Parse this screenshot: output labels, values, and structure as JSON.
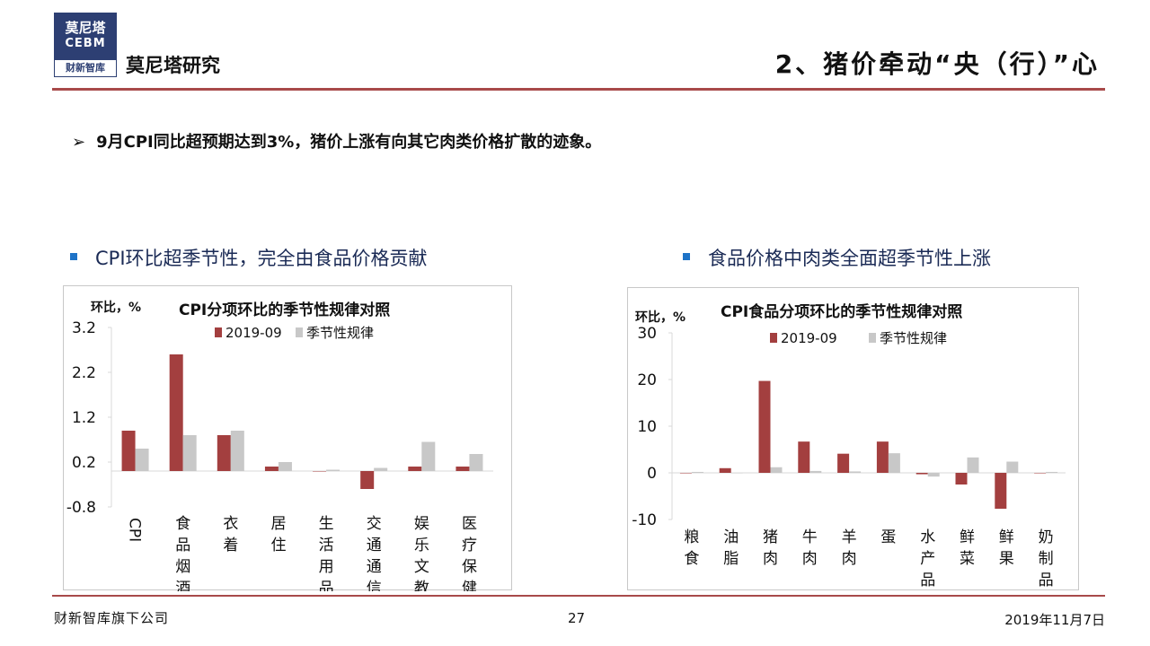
{
  "header": {
    "logo_cn": "莫尼塔",
    "logo_en": "CEBM",
    "logo_sub": "财新智库",
    "brand": "莫尼塔研究",
    "page_title": "2、猪价牵动“央（行）”心"
  },
  "bullet": {
    "arrow": "➢",
    "text": "9月CPI同比超预期达到3%，猪价上涨有向其它肉类价格扩散的迹象。"
  },
  "sections": [
    {
      "title": "CPI环比超季节性，完全由食品价格贡献"
    },
    {
      "title": "食品价格中肉类全面超季节性上涨"
    }
  ],
  "colors": {
    "series_2019": "#a33f3f",
    "series_seasonal": "#c8c8c8",
    "rule": "#a84a4a",
    "bullet_square": "#1e73c7"
  },
  "chart_data": [
    {
      "type": "bar",
      "title": "CPI分项环比的季节性规律对照",
      "ylabel": "环比，%",
      "ylim": [
        -0.8,
        3.2
      ],
      "yticks": [
        "3.2",
        "2.2",
        "1.2",
        "0.2",
        "-0.8"
      ],
      "ytick_values": [
        3.2,
        2.2,
        1.2,
        0.2,
        -0.8
      ],
      "categories": [
        "CPI",
        "食品烟酒",
        "衣着",
        "居住",
        "生活用品",
        "交通通信",
        "娱乐文教",
        "医疗保健"
      ],
      "series": [
        {
          "name": "2019-09",
          "values": [
            0.9,
            2.6,
            0.8,
            0.1,
            0.0,
            -0.4,
            0.1,
            0.1
          ]
        },
        {
          "name": "季节性规律",
          "values": [
            0.5,
            0.8,
            0.9,
            0.2,
            0.03,
            0.07,
            0.65,
            0.38
          ]
        }
      ],
      "legend": "top"
    },
    {
      "type": "bar",
      "title": "CPI食品分项环比的季节性规律对照",
      "ylabel": "环比，%",
      "ylim": [
        -10,
        30
      ],
      "yticks": [
        "30",
        "20",
        "10",
        "0",
        "-10"
      ],
      "ytick_values": [
        30,
        20,
        10,
        0,
        -10
      ],
      "categories": [
        "粮食",
        "油脂",
        "猪肉",
        "牛肉",
        "羊肉",
        "蛋",
        "水产品",
        "鲜菜",
        "鲜果",
        "奶制品"
      ],
      "series": [
        {
          "name": "2019-09",
          "values": [
            0.0,
            1.0,
            19.7,
            6.7,
            4.1,
            6.7,
            -0.3,
            -2.5,
            -7.7,
            0.0
          ]
        },
        {
          "name": "季节性规律",
          "values": [
            0.2,
            0.0,
            1.2,
            0.4,
            0.3,
            4.2,
            -0.8,
            3.3,
            2.4,
            0.2
          ]
        }
      ],
      "legend": "top"
    }
  ],
  "footer": {
    "company": "财新智库旗下公司",
    "page_number": "27",
    "date": "2019年11月7日"
  }
}
